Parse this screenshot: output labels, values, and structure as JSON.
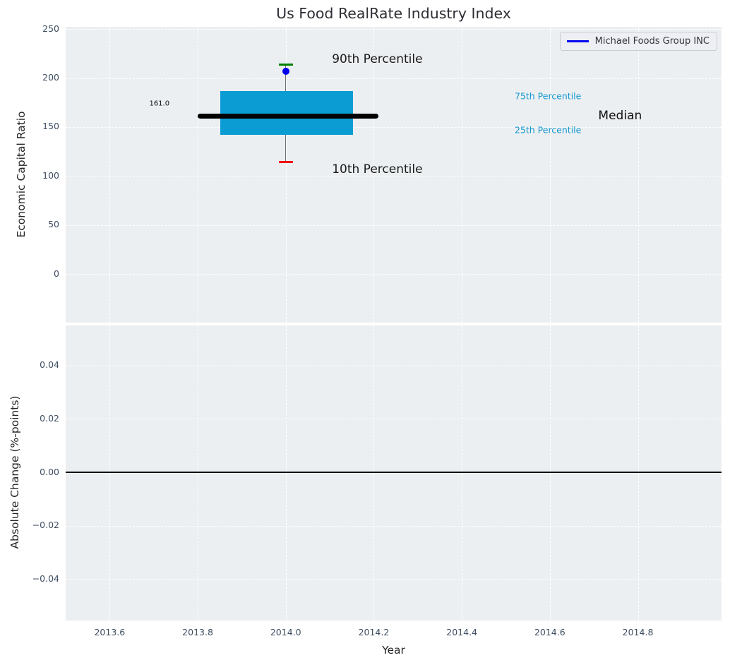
{
  "chart_data": {
    "type": "boxplot",
    "title": "Us Food RealRate Industry Index",
    "xlabel": "Year",
    "xlim": [
      2013.5,
      2014.99
    ],
    "x_ticks": [
      {
        "v": 2013.6,
        "label": "2013.6"
      },
      {
        "v": 2013.8,
        "label": "2013.8"
      },
      {
        "v": 2014.0,
        "label": "2014.0"
      },
      {
        "v": 2014.2,
        "label": "2014.2"
      },
      {
        "v": 2014.4,
        "label": "2014.4"
      },
      {
        "v": 2014.6,
        "label": "2014.6"
      },
      {
        "v": 2014.8,
        "label": "2014.8"
      }
    ],
    "legend": {
      "label": "Michael Foods Group INC"
    },
    "panels": {
      "top": {
        "ylabel": "Economic Capital Ratio",
        "ylim": [
          -49.7,
          252.3
        ],
        "y_ticks": [
          {
            "v": 250,
            "label": "250"
          },
          {
            "v": 200,
            "label": "200"
          },
          {
            "v": 150,
            "label": "150"
          },
          {
            "v": 100,
            "label": "100"
          },
          {
            "v": 50,
            "label": "50"
          },
          {
            "v": 0,
            "label": "0"
          }
        ],
        "boxplot": {
          "x": 2014.0,
          "p10": 114,
          "p25": 142,
          "median": 161,
          "p75": 187,
          "p90": 214,
          "box_x_range": [
            2013.852,
            2014.152
          ],
          "median_x_range": [
            2013.8,
            2014.21
          ],
          "cap_half_width": 0.016
        },
        "company_point": {
          "x": 2014.0,
          "y": 207
        },
        "annotations": [
          {
            "text": "90th Percentile",
            "x": 2014.105,
            "y": 219,
            "color": "#1a1a1a",
            "size": 17
          },
          {
            "text": "10th Percentile",
            "x": 2014.105,
            "y": 106.6,
            "color": "#1a1a1a",
            "size": 17
          },
          {
            "text": "75th Percentile",
            "x": 2014.52,
            "y": 182,
            "color": "#1599d2",
            "size": 12.5
          },
          {
            "text": "25th Percentile",
            "x": 2014.52,
            "y": 147,
            "color": "#1599d2",
            "size": 12.5
          },
          {
            "text": "Median",
            "x": 2014.71,
            "y": 161.5,
            "color": "#111111",
            "size": 17
          },
          {
            "text": "161.0",
            "x": 2013.69,
            "y": 174,
            "color": "#111111",
            "size": 10
          }
        ]
      },
      "bottom": {
        "ylabel": "Absolute Change (%-points)",
        "ylim": [
          -0.0555,
          0.055
        ],
        "y_ticks": [
          {
            "v": 0.04,
            "label": "0.04"
          },
          {
            "v": 0.02,
            "label": "0.02"
          },
          {
            "v": 0.0,
            "label": "0.00"
          },
          {
            "v": -0.02,
            "label": "−0.02"
          },
          {
            "v": -0.04,
            "label": "−0.04"
          }
        ],
        "zero_line_y": 0.0
      }
    },
    "colors": {
      "plot_bg": "#eceff1",
      "grid": "#ffffff",
      "tick_text": "#3e4d61",
      "box_fill": "#0c9cd4",
      "median_line": "#000000",
      "whisker": "#707070",
      "cap_high": "#008000",
      "cap_low": "#f20000",
      "point": "#0000ee",
      "accent_text": "#1599d2",
      "zero_line": "#000000"
    }
  }
}
